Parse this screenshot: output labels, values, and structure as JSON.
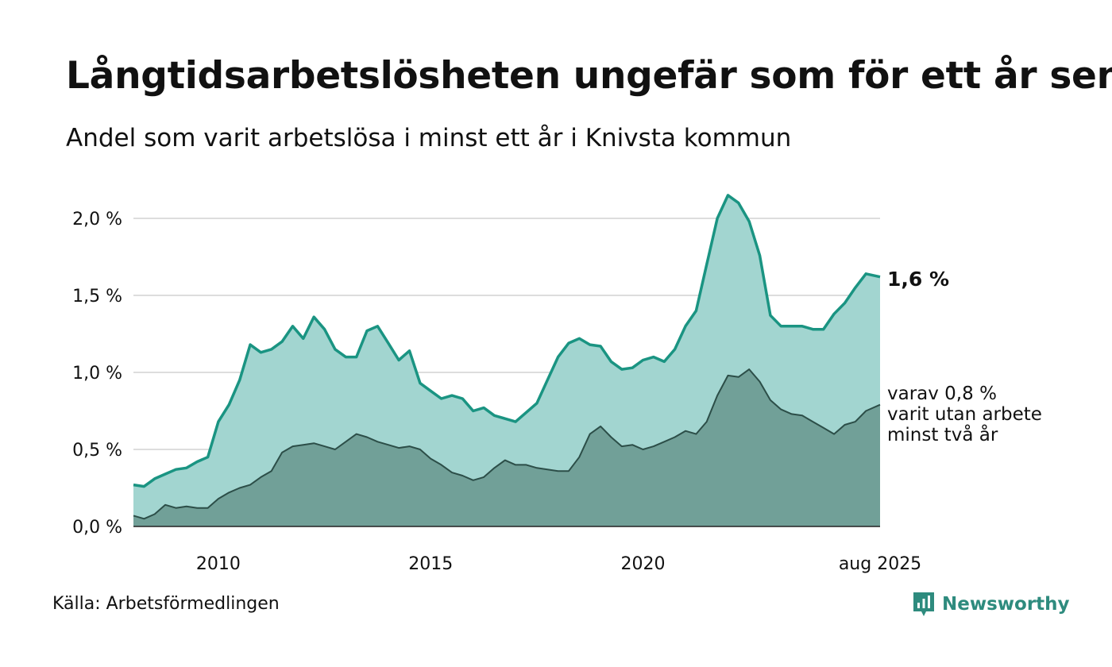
{
  "header": {
    "title": "Långtidsarbetslösheten ungefär som för ett år sen",
    "subtitle": "Andel som varit arbetslösa i minst ett år i Knivsta kommun"
  },
  "footer": {
    "source": "Källa: Arbetsförmedlingen",
    "brand": "Newsworthy"
  },
  "colors": {
    "total_line": "#1a9482",
    "total_fill": "#a2d5d0",
    "sub_line": "#2c4e48",
    "sub_fill": "#71a098",
    "grid": "#dddddd",
    "brand": "#2e8b7e"
  },
  "icons": {
    "brand": "bar-chart-logo-icon"
  },
  "chart_data": {
    "type": "area",
    "y_ticks": [
      {
        "value": 0.0,
        "label": "0,0 %"
      },
      {
        "value": 0.5,
        "label": "0,5 %"
      },
      {
        "value": 1.0,
        "label": "1,0 %"
      },
      {
        "value": 1.5,
        "label": "1,5 %"
      },
      {
        "value": 2.0,
        "label": "2,0 %"
      }
    ],
    "x_ticks": [
      {
        "value": 2010.0,
        "label": "2010"
      },
      {
        "value": 2015.0,
        "label": "2015"
      },
      {
        "value": 2020.0,
        "label": "2020"
      },
      {
        "value": 2025.583,
        "label": "aug 2025"
      }
    ],
    "xlim": [
      2008.0,
      2025.583
    ],
    "ylim": [
      0,
      2.25
    ],
    "grid": true,
    "end_labels": {
      "total": "1,6 %",
      "sub": [
        "varav 0,8 %",
        "varit utan arbete",
        "minst två år"
      ]
    },
    "series": [
      {
        "key": "total",
        "points": [
          [
            2008.0,
            0.27
          ],
          [
            2008.25,
            0.26
          ],
          [
            2008.5,
            0.31
          ],
          [
            2008.75,
            0.34
          ],
          [
            2009.0,
            0.37
          ],
          [
            2009.25,
            0.38
          ],
          [
            2009.5,
            0.42
          ],
          [
            2009.75,
            0.45
          ],
          [
            2010.0,
            0.68
          ],
          [
            2010.25,
            0.79
          ],
          [
            2010.5,
            0.95
          ],
          [
            2010.75,
            1.18
          ],
          [
            2011.0,
            1.13
          ],
          [
            2011.25,
            1.15
          ],
          [
            2011.5,
            1.2
          ],
          [
            2011.75,
            1.3
          ],
          [
            2012.0,
            1.22
          ],
          [
            2012.25,
            1.36
          ],
          [
            2012.5,
            1.28
          ],
          [
            2012.75,
            1.15
          ],
          [
            2013.0,
            1.1
          ],
          [
            2013.25,
            1.1
          ],
          [
            2013.5,
            1.27
          ],
          [
            2013.75,
            1.3
          ],
          [
            2014.0,
            1.19
          ],
          [
            2014.25,
            1.08
          ],
          [
            2014.5,
            1.14
          ],
          [
            2014.75,
            0.93
          ],
          [
            2015.0,
            0.88
          ],
          [
            2015.25,
            0.83
          ],
          [
            2015.5,
            0.85
          ],
          [
            2015.75,
            0.83
          ],
          [
            2016.0,
            0.75
          ],
          [
            2016.25,
            0.77
          ],
          [
            2016.5,
            0.72
          ],
          [
            2016.75,
            0.7
          ],
          [
            2017.0,
            0.68
          ],
          [
            2017.25,
            0.74
          ],
          [
            2017.5,
            0.8
          ],
          [
            2017.75,
            0.95
          ],
          [
            2018.0,
            1.1
          ],
          [
            2018.25,
            1.19
          ],
          [
            2018.5,
            1.22
          ],
          [
            2018.75,
            1.18
          ],
          [
            2019.0,
            1.17
          ],
          [
            2019.25,
            1.07
          ],
          [
            2019.5,
            1.02
          ],
          [
            2019.75,
            1.03
          ],
          [
            2020.0,
            1.08
          ],
          [
            2020.25,
            1.1
          ],
          [
            2020.5,
            1.07
          ],
          [
            2020.75,
            1.15
          ],
          [
            2021.0,
            1.3
          ],
          [
            2021.25,
            1.4
          ],
          [
            2021.5,
            1.7
          ],
          [
            2021.75,
            2.0
          ],
          [
            2022.0,
            2.15
          ],
          [
            2022.25,
            2.1
          ],
          [
            2022.5,
            1.98
          ],
          [
            2022.75,
            1.76
          ],
          [
            2023.0,
            1.37
          ],
          [
            2023.25,
            1.3
          ],
          [
            2023.5,
            1.3
          ],
          [
            2023.75,
            1.3
          ],
          [
            2024.0,
            1.28
          ],
          [
            2024.25,
            1.28
          ],
          [
            2024.5,
            1.38
          ],
          [
            2024.75,
            1.45
          ],
          [
            2025.0,
            1.55
          ],
          [
            2025.25,
            1.64
          ],
          [
            2025.583,
            1.62
          ]
        ]
      },
      {
        "key": "sub",
        "points": [
          [
            2008.0,
            0.07
          ],
          [
            2008.25,
            0.05
          ],
          [
            2008.5,
            0.08
          ],
          [
            2008.75,
            0.14
          ],
          [
            2009.0,
            0.12
          ],
          [
            2009.25,
            0.13
          ],
          [
            2009.5,
            0.12
          ],
          [
            2009.75,
            0.12
          ],
          [
            2010.0,
            0.18
          ],
          [
            2010.25,
            0.22
          ],
          [
            2010.5,
            0.25
          ],
          [
            2010.75,
            0.27
          ],
          [
            2011.0,
            0.32
          ],
          [
            2011.25,
            0.36
          ],
          [
            2011.5,
            0.48
          ],
          [
            2011.75,
            0.52
          ],
          [
            2012.0,
            0.53
          ],
          [
            2012.25,
            0.54
          ],
          [
            2012.5,
            0.52
          ],
          [
            2012.75,
            0.5
          ],
          [
            2013.0,
            0.55
          ],
          [
            2013.25,
            0.6
          ],
          [
            2013.5,
            0.58
          ],
          [
            2013.75,
            0.55
          ],
          [
            2014.0,
            0.53
          ],
          [
            2014.25,
            0.51
          ],
          [
            2014.5,
            0.52
          ],
          [
            2014.75,
            0.5
          ],
          [
            2015.0,
            0.44
          ],
          [
            2015.25,
            0.4
          ],
          [
            2015.5,
            0.35
          ],
          [
            2015.75,
            0.33
          ],
          [
            2016.0,
            0.3
          ],
          [
            2016.25,
            0.32
          ],
          [
            2016.5,
            0.38
          ],
          [
            2016.75,
            0.43
          ],
          [
            2017.0,
            0.4
          ],
          [
            2017.25,
            0.4
          ],
          [
            2017.5,
            0.38
          ],
          [
            2017.75,
            0.37
          ],
          [
            2018.0,
            0.36
          ],
          [
            2018.25,
            0.36
          ],
          [
            2018.5,
            0.45
          ],
          [
            2018.75,
            0.6
          ],
          [
            2019.0,
            0.65
          ],
          [
            2019.25,
            0.58
          ],
          [
            2019.5,
            0.52
          ],
          [
            2019.75,
            0.53
          ],
          [
            2020.0,
            0.5
          ],
          [
            2020.25,
            0.52
          ],
          [
            2020.5,
            0.55
          ],
          [
            2020.75,
            0.58
          ],
          [
            2021.0,
            0.62
          ],
          [
            2021.25,
            0.6
          ],
          [
            2021.5,
            0.68
          ],
          [
            2021.75,
            0.85
          ],
          [
            2022.0,
            0.98
          ],
          [
            2022.25,
            0.97
          ],
          [
            2022.5,
            1.02
          ],
          [
            2022.75,
            0.94
          ],
          [
            2023.0,
            0.82
          ],
          [
            2023.25,
            0.76
          ],
          [
            2023.5,
            0.73
          ],
          [
            2023.75,
            0.72
          ],
          [
            2024.0,
            0.68
          ],
          [
            2024.25,
            0.64
          ],
          [
            2024.5,
            0.6
          ],
          [
            2024.75,
            0.66
          ],
          [
            2025.0,
            0.68
          ],
          [
            2025.25,
            0.75
          ],
          [
            2025.583,
            0.79
          ]
        ]
      }
    ]
  }
}
